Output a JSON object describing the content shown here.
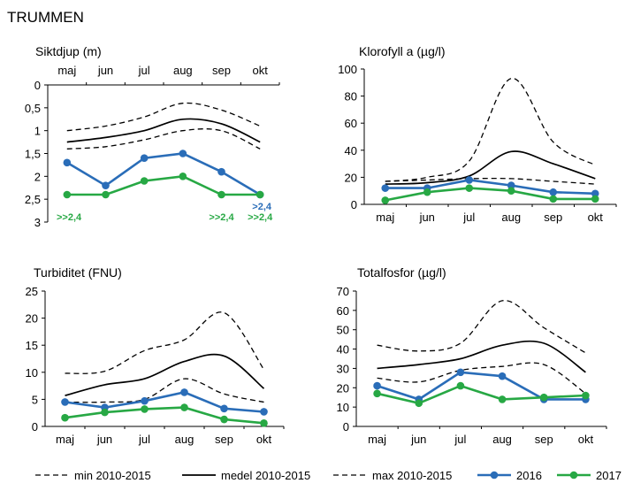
{
  "title": "TRUMMEN",
  "colors": {
    "series_2016": "#2a6db8",
    "series_2017": "#27a844",
    "reference": "#000000"
  },
  "legend": {
    "min": "min 2010-2015",
    "medel": "medel 2010-2015",
    "max": "max 2010-2015",
    "y2016": "2016",
    "y2017": "2017"
  },
  "chart_data": [
    {
      "type": "line",
      "title": "Siktdjup (m)",
      "categories": [
        "maj",
        "jun",
        "jul",
        "aug",
        "sep",
        "okt"
      ],
      "ylim": [
        0,
        3
      ],
      "y_inverted": true,
      "y_ticks": [
        "0",
        "0,5",
        "1",
        "1,5",
        "2",
        "2,5",
        "3"
      ],
      "x_axis_position": "top",
      "series": [
        {
          "name": "min 2010-2015",
          "values": [
            1.4,
            1.35,
            1.2,
            1.0,
            1.0,
            1.4
          ]
        },
        {
          "name": "medel 2010-2015",
          "values": [
            1.25,
            1.15,
            1.0,
            0.75,
            0.85,
            1.25
          ]
        },
        {
          "name": "max 2010-2015",
          "values": [
            1.0,
            0.9,
            0.7,
            0.4,
            0.55,
            0.9
          ]
        },
        {
          "name": "2016",
          "values": [
            1.7,
            2.2,
            1.6,
            1.5,
            1.9,
            2.4
          ]
        },
        {
          "name": "2017",
          "values": [
            2.4,
            2.4,
            2.1,
            2.0,
            2.4,
            2.4
          ]
        }
      ],
      "annotations": [
        {
          "text": ">>2,4",
          "at": "maj",
          "series": "2017"
        },
        {
          "text": ">2,4",
          "at": "okt",
          "series": "2016"
        },
        {
          "text": ">>2,4",
          "at": "sep",
          "series": "2017"
        },
        {
          "text": ">>2,4",
          "at": "okt",
          "series": "2017"
        }
      ]
    },
    {
      "type": "line",
      "title": "Klorofyll a (µg/l)",
      "categories": [
        "maj",
        "jun",
        "jul",
        "aug",
        "sep",
        "okt"
      ],
      "ylim": [
        0,
        100
      ],
      "y_ticks": [
        "0",
        "20",
        "40",
        "60",
        "80",
        "100"
      ],
      "x_axis_position": "bottom",
      "series": [
        {
          "name": "min 2010-2015",
          "values": [
            17,
            18,
            19,
            19,
            17,
            15
          ]
        },
        {
          "name": "medel 2010-2015",
          "values": [
            15,
            16,
            21,
            39,
            30,
            19
          ]
        },
        {
          "name": "max 2010-2015",
          "values": [
            17,
            20,
            32,
            93,
            46,
            29
          ]
        },
        {
          "name": "2016",
          "values": [
            12,
            12,
            18,
            14,
            9,
            8
          ]
        },
        {
          "name": "2017",
          "values": [
            3,
            9,
            12,
            10,
            4,
            4
          ]
        }
      ]
    },
    {
      "type": "line",
      "title": "Turbiditet (FNU)",
      "categories": [
        "maj",
        "jun",
        "jul",
        "aug",
        "sep",
        "okt"
      ],
      "ylim": [
        0,
        25
      ],
      "y_ticks": [
        "0",
        "5",
        "10",
        "15",
        "20",
        "25"
      ],
      "x_axis_position": "bottom",
      "series": [
        {
          "name": "min 2010-2015",
          "values": [
            4.5,
            4.5,
            5,
            8.8,
            6,
            4.5
          ]
        },
        {
          "name": "medel 2010-2015",
          "values": [
            5.7,
            7.7,
            8.8,
            12,
            13,
            7
          ]
        },
        {
          "name": "max 2010-2015",
          "values": [
            9.8,
            10.2,
            14,
            16,
            21,
            10.5
          ]
        },
        {
          "name": "2016",
          "values": [
            4.5,
            3.5,
            4.7,
            6.3,
            3.3,
            2.7
          ]
        },
        {
          "name": "2017",
          "values": [
            1.6,
            2.6,
            3.2,
            3.5,
            1.3,
            0.6
          ]
        }
      ]
    },
    {
      "type": "line",
      "title": "Totalfosfor (µg/l)",
      "categories": [
        "maj",
        "jun",
        "jul",
        "aug",
        "sep",
        "okt"
      ],
      "ylim": [
        0,
        70
      ],
      "y_ticks": [
        "0",
        "10",
        "20",
        "30",
        "40",
        "50",
        "60",
        "70"
      ],
      "x_axis_position": "bottom",
      "series": [
        {
          "name": "min 2010-2015",
          "values": [
            25,
            23,
            29,
            31,
            32,
            17
          ]
        },
        {
          "name": "medel 2010-2015",
          "values": [
            30,
            32,
            35,
            42,
            43,
            28
          ]
        },
        {
          "name": "max 2010-2015",
          "values": [
            42,
            39,
            43,
            65,
            51,
            38
          ]
        },
        {
          "name": "2016",
          "values": [
            21,
            14,
            28,
            26,
            14,
            14
          ]
        },
        {
          "name": "2017",
          "values": [
            17,
            12,
            21,
            14,
            15,
            16
          ]
        }
      ]
    }
  ]
}
